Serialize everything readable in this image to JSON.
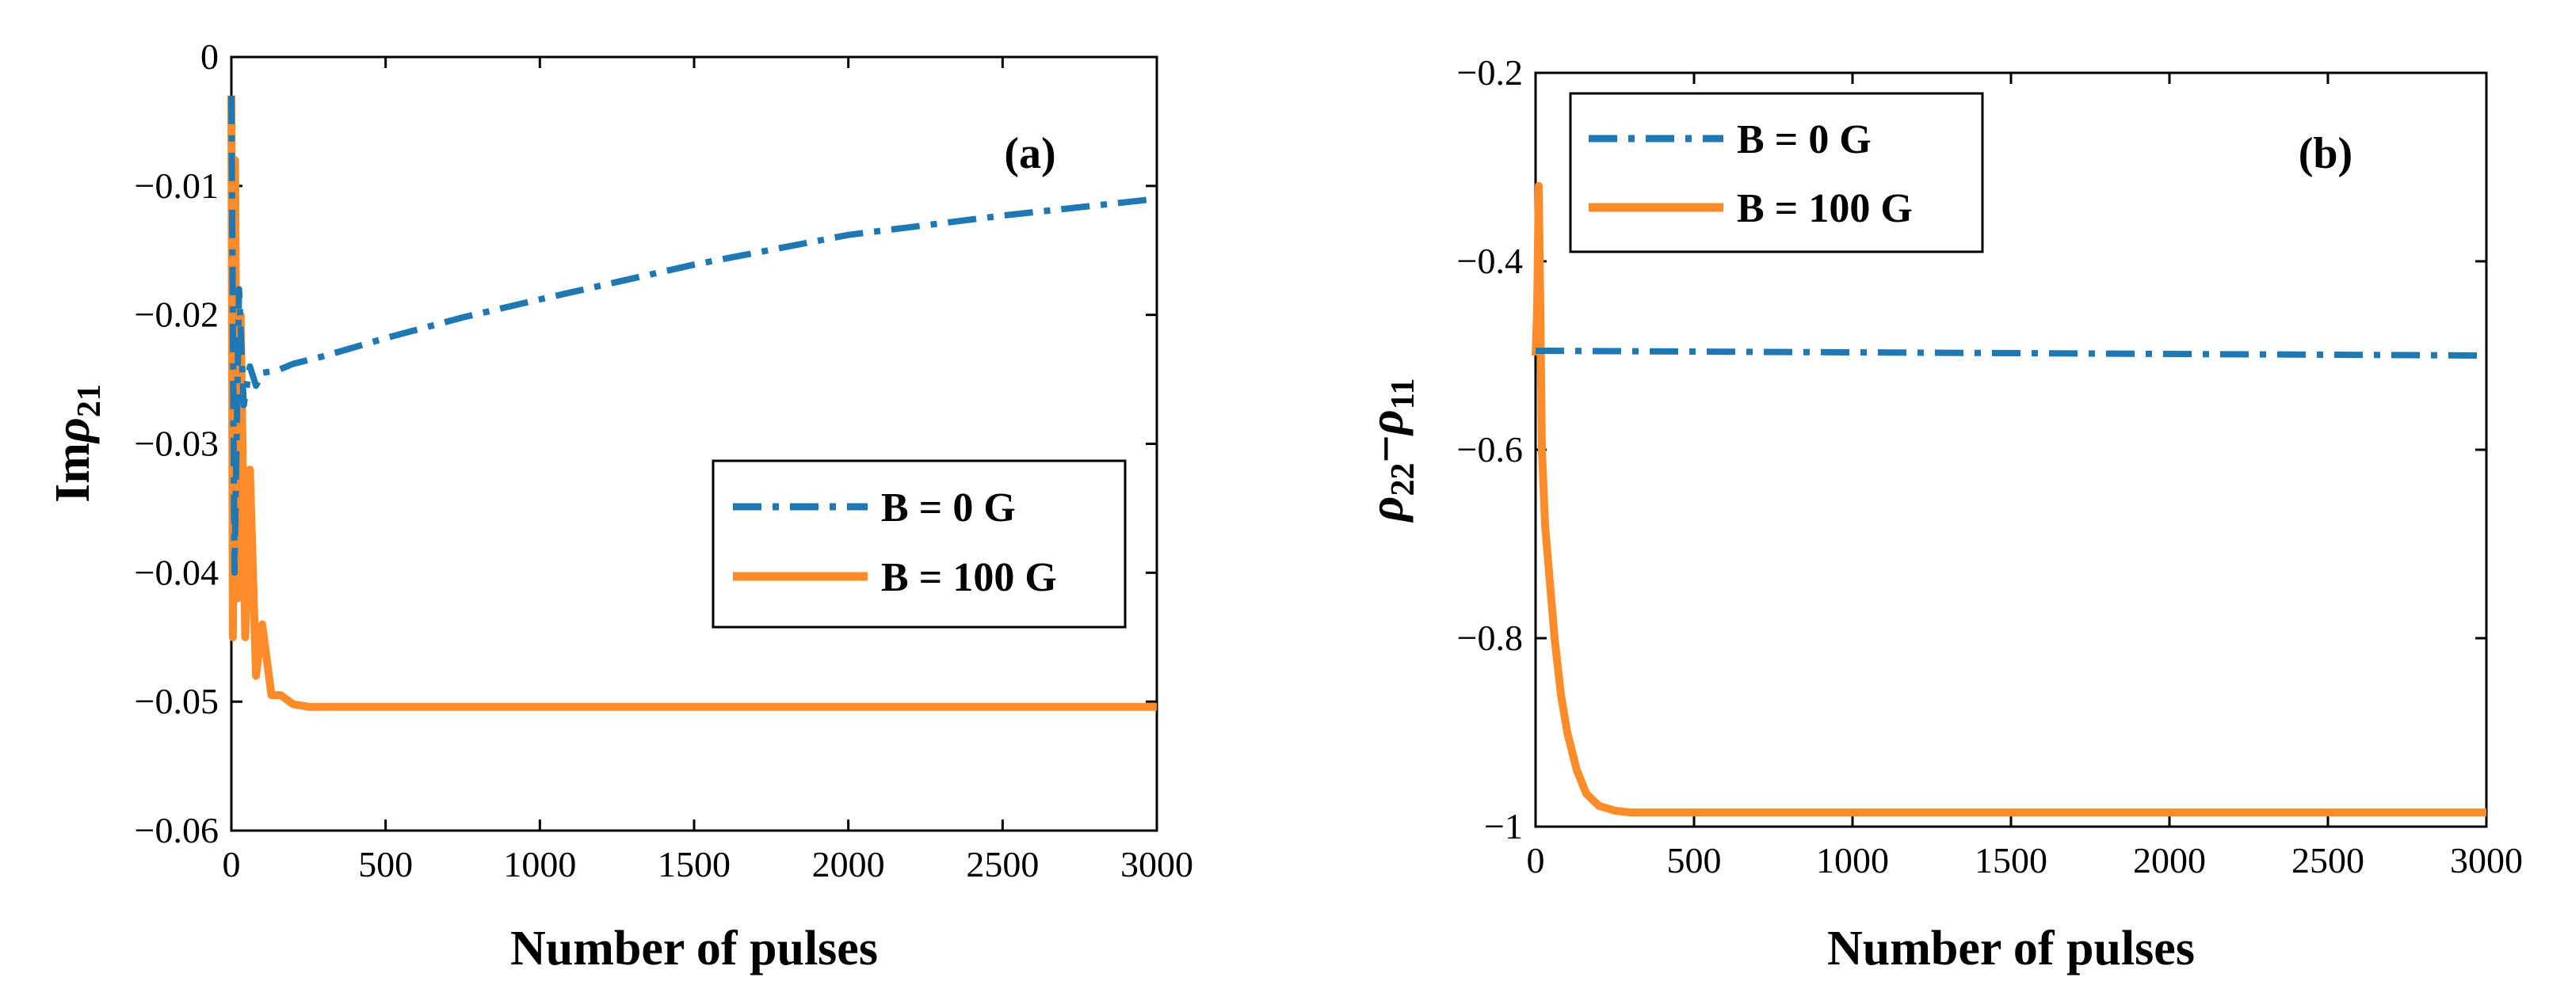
{
  "chart_data": [
    {
      "type": "line",
      "panel_label": "(a)",
      "xlabel": "Number of pulses",
      "ylabel_main": "Im",
      "ylabel_symbol": "ρ",
      "ylabel_sub": "21",
      "xlim": [
        0,
        3000
      ],
      "ylim": [
        -0.06,
        0
      ],
      "xticks": [
        0,
        500,
        1000,
        1500,
        2000,
        2500,
        3000
      ],
      "xtick_labels": [
        "0",
        "500",
        "1000",
        "1500",
        "2000",
        "2500",
        "3000"
      ],
      "yticks": [
        0,
        -0.01,
        -0.02,
        -0.03,
        -0.04,
        -0.05,
        -0.06
      ],
      "ytick_labels": [
        "0",
        "−0.01",
        "−0.02",
        "−0.03",
        "−0.04",
        "−0.05",
        "−0.06"
      ],
      "legend_position": "center-right",
      "series": [
        {
          "name": "B = 0 G",
          "color": "#1f77b4",
          "style": "dash-dot",
          "x": [
            0,
            10,
            25,
            40,
            60,
            80,
            100,
            150,
            200,
            300,
            500,
            750,
            1000,
            1500,
            2000,
            2500,
            3000
          ],
          "y": [
            -0.003,
            -0.04,
            -0.018,
            -0.027,
            -0.024,
            -0.0255,
            -0.0245,
            -0.0243,
            -0.0238,
            -0.0232,
            -0.0218,
            -0.0202,
            -0.0188,
            -0.0161,
            -0.0138,
            -0.0123,
            -0.011
          ]
        },
        {
          "name": "B = 100 G",
          "color": "#ff8c29",
          "style": "solid",
          "x": [
            0,
            5,
            12,
            20,
            30,
            45,
            60,
            80,
            100,
            130,
            160,
            200,
            250,
            300,
            500,
            1000,
            2000,
            3000
          ],
          "y": [
            -0.003,
            -0.045,
            -0.008,
            -0.042,
            -0.02,
            -0.045,
            -0.032,
            -0.048,
            -0.044,
            -0.0495,
            -0.0495,
            -0.0502,
            -0.0504,
            -0.0504,
            -0.0504,
            -0.0504,
            -0.0504,
            -0.0504
          ]
        }
      ]
    },
    {
      "type": "line",
      "panel_label": "(b)",
      "xlabel": "Number of pulses",
      "ylabel_symbol": "ρ",
      "ylabel_sub1": "22",
      "ylabel_minus": "−",
      "ylabel_sub2": "11",
      "xlim": [
        0,
        3000
      ],
      "ylim": [
        -1,
        -0.2
      ],
      "xticks": [
        0,
        500,
        1000,
        1500,
        2000,
        2500,
        3000
      ],
      "xtick_labels": [
        "0",
        "500",
        "1000",
        "1500",
        "2000",
        "2500",
        "3000"
      ],
      "yticks": [
        -0.2,
        -0.4,
        -0.6,
        -0.8,
        -1
      ],
      "ytick_labels": [
        "−0.2",
        "−0.4",
        "−0.6",
        "−0.8",
        "−1"
      ],
      "legend_position": "top-left",
      "series": [
        {
          "name": "B = 0 G",
          "color": "#1f77b4",
          "style": "dash-dot",
          "x": [
            0,
            3000
          ],
          "y": [
            -0.495,
            -0.5
          ]
        },
        {
          "name": "B = 100 G",
          "color": "#ff8c29",
          "style": "solid",
          "x": [
            0,
            5,
            10,
            15,
            20,
            30,
            40,
            60,
            80,
            100,
            130,
            160,
            200,
            250,
            300,
            500,
            1000,
            2000,
            3000
          ],
          "y": [
            -0.5,
            -0.45,
            -0.32,
            -0.45,
            -0.6,
            -0.68,
            -0.72,
            -0.8,
            -0.86,
            -0.9,
            -0.94,
            -0.965,
            -0.978,
            -0.983,
            -0.985,
            -0.985,
            -0.985,
            -0.985,
            -0.985
          ]
        }
      ]
    }
  ]
}
